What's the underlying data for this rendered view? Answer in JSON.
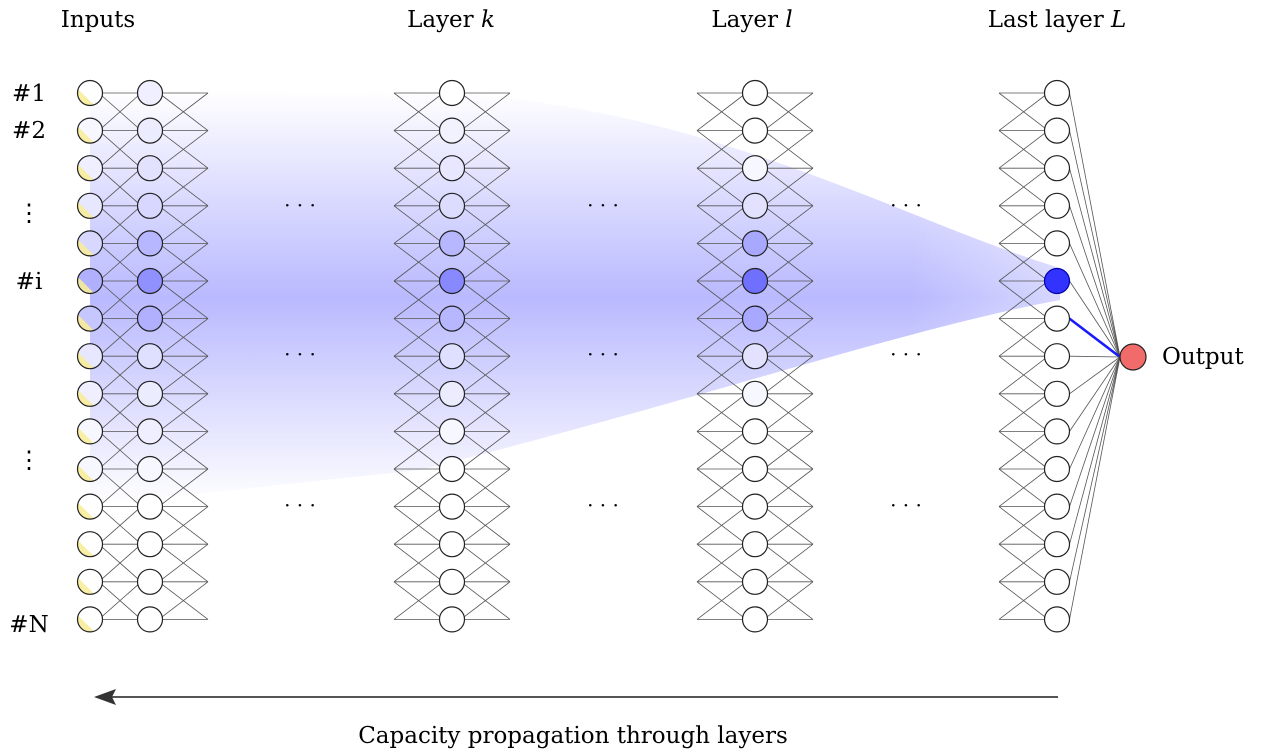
{
  "headers": {
    "inputs": "Inputs",
    "layer_k_prefix": "Layer ",
    "layer_k_var": "k",
    "layer_l_prefix": "Layer ",
    "layer_l_var": "l",
    "last_prefix": "Last layer ",
    "last_var": "L"
  },
  "row_labels": {
    "first": "#1",
    "second": "#2",
    "middle": "#i",
    "last": "#N",
    "ellipsis": "⋮"
  },
  "ellipsis_h": "· · ·",
  "output_label": "Output",
  "caption": "Capacity propagation through layers",
  "colors": {
    "input_fill": "#f7ec9a",
    "highlight": "#3333ff",
    "propagation": "#8080ff",
    "output_fill": "#f26b6b",
    "edge": "#555555",
    "active_edge": "#1a1aff",
    "arrow": "#555555"
  },
  "node_count_per_layer": 15,
  "highlighted_row": 6,
  "shade_levels": {
    "input_layer": [
      0.0,
      0.05,
      0.1,
      0.15,
      0.25,
      0.5,
      0.35,
      0.15,
      0.1,
      0.05,
      0.05,
      0,
      0,
      0,
      0
    ],
    "first_hidden": [
      0.1,
      0.12,
      0.18,
      0.25,
      0.45,
      0.7,
      0.5,
      0.2,
      0.12,
      0.1,
      0.05,
      0,
      0,
      0,
      0
    ],
    "layer_k": [
      0,
      0.08,
      0.15,
      0.22,
      0.45,
      0.75,
      0.45,
      0.2,
      0.12,
      0.05,
      0,
      0,
      0,
      0,
      0
    ],
    "layer_l": [
      0,
      0,
      0.05,
      0.18,
      0.55,
      0.9,
      0.55,
      0.18,
      0.05,
      0,
      0,
      0,
      0,
      0,
      0
    ],
    "last_layer": [
      0,
      0,
      0,
      0,
      0,
      1.0,
      0,
      0,
      0,
      0,
      0,
      0,
      0,
      0,
      0
    ]
  }
}
